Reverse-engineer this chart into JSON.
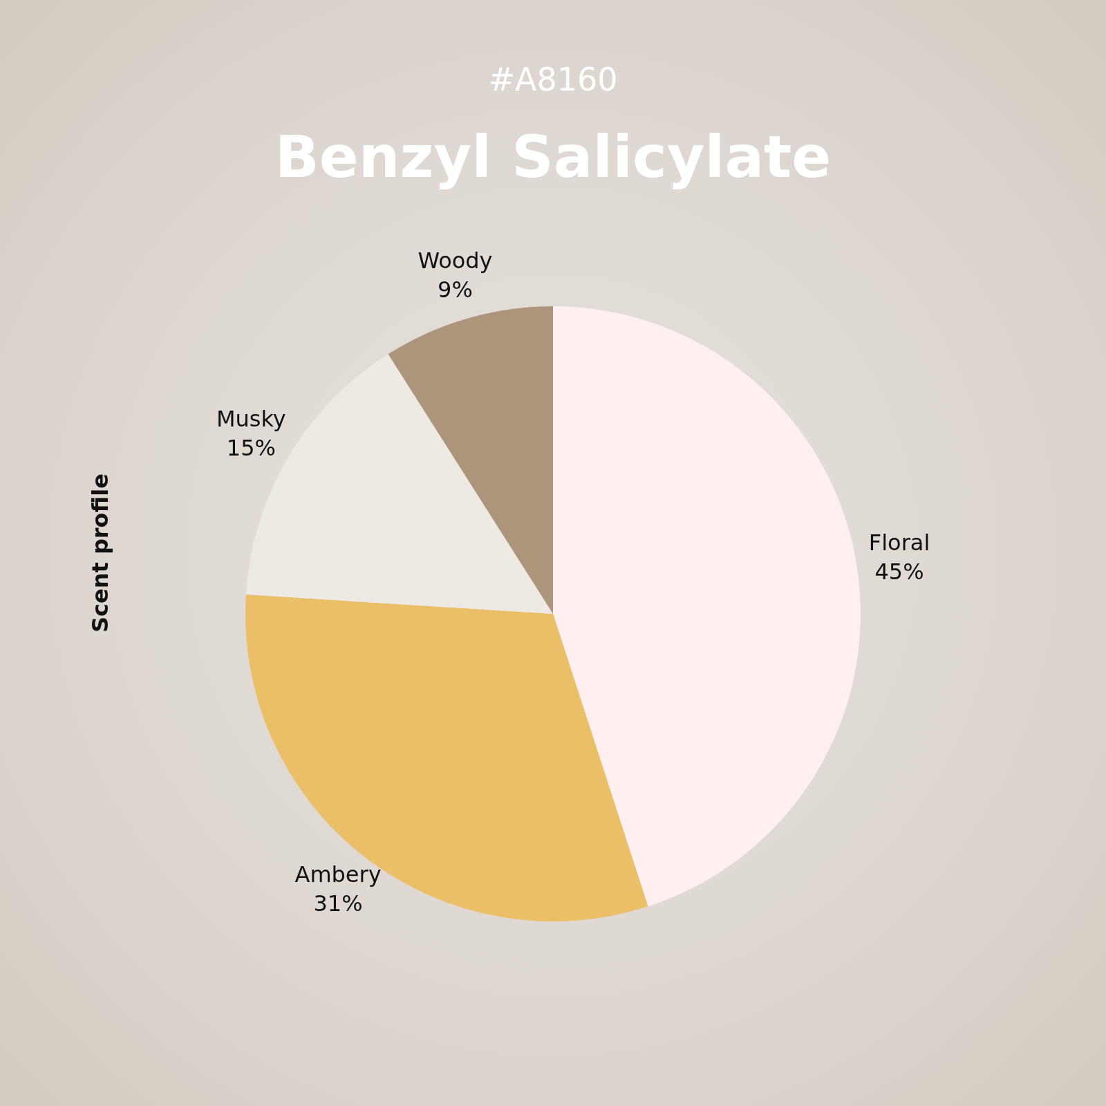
{
  "chart_data": {
    "type": "pie",
    "subtitle": "#A8160",
    "title": "Benzyl Salicylate",
    "annotations": [
      "Scent profile"
    ],
    "categories": [
      "Floral",
      "Ambery",
      "Musky",
      "Woody"
    ],
    "values": [
      45,
      31,
      15,
      9
    ],
    "value_labels": [
      "45%",
      "31%",
      "15%",
      "9%"
    ],
    "colors": [
      "#fff0ef",
      "#ebbf68",
      "#ede9e3",
      "#ad957c"
    ],
    "legend": false
  }
}
